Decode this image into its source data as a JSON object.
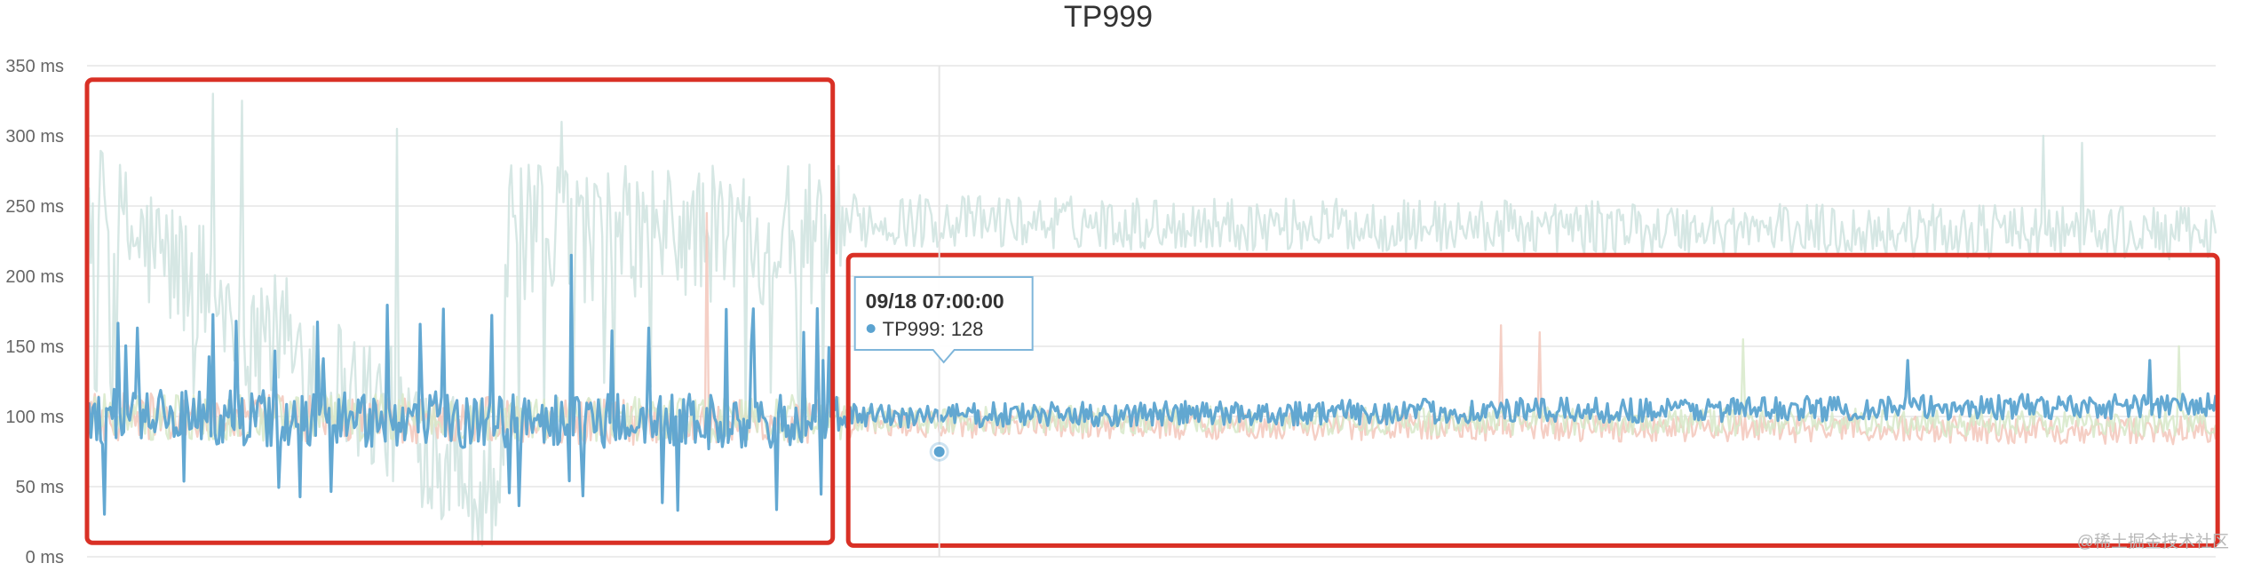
{
  "chart_data": {
    "type": "line",
    "title": "TP999",
    "xlabel": "",
    "ylabel": "",
    "ylim": [
      0,
      350
    ],
    "yticks": [
      "0 ms",
      "50 ms",
      "100 ms",
      "150 ms",
      "200 ms",
      "250 ms",
      "300 ms",
      "350 ms"
    ],
    "ytick_values": [
      0,
      50,
      100,
      150,
      200,
      250,
      300,
      350
    ],
    "grid": true,
    "legend": "none",
    "x_points": 1100,
    "series": [
      {
        "color": "#cfe3df",
        "baseline_segments": [
          [
            0,
            250,
            215,
            45
          ],
          [
            390,
            240,
            1100,
            230
          ]
        ],
        "peaks": [
          [
            65,
            330
          ],
          [
            80,
            325
          ],
          [
            160,
            305
          ],
          [
            245,
            310
          ],
          [
            1010,
            300
          ],
          [
            1030,
            295
          ]
        ]
      },
      {
        "color": "#f3c7bb",
        "baseline_segments": [
          [
            0,
            100,
            390,
            95
          ],
          [
            390,
            95,
            1100,
            90
          ]
        ],
        "peaks": [
          [
            320,
            245
          ],
          [
            730,
            165
          ],
          [
            750,
            160
          ]
        ]
      },
      {
        "color": "#d7e9c9",
        "baseline_segments": [
          [
            0,
            100,
            1100,
            95
          ]
        ],
        "peaks": [
          [
            855,
            155
          ],
          [
            1080,
            150
          ]
        ]
      },
      {
        "color": "#5ba3d0",
        "baseline_segments": [
          [
            0,
            100,
            390,
            95
          ],
          [
            390,
            100,
            1100,
            108
          ]
        ],
        "peaks": [
          [
            250,
            215
          ],
          [
            370,
            160
          ],
          [
            380,
            140
          ],
          [
            940,
            140
          ],
          [
            1065,
            140
          ]
        ]
      }
    ],
    "highlight_regions": [
      {
        "x_start": 0,
        "x_end": 385,
        "y_start": 10,
        "y_end": 340,
        "color": "#d93025"
      },
      {
        "x_start": 393,
        "x_end": 1100,
        "y_start": 8,
        "y_end": 215,
        "color": "#d93025"
      }
    ],
    "tooltip": {
      "time": "09/18 07:00:00",
      "series_name": "TP999",
      "value": 128,
      "x_index": 440,
      "marker_color": "#5ba3d0"
    }
  },
  "watermark": "@稀土掘金技术社区"
}
